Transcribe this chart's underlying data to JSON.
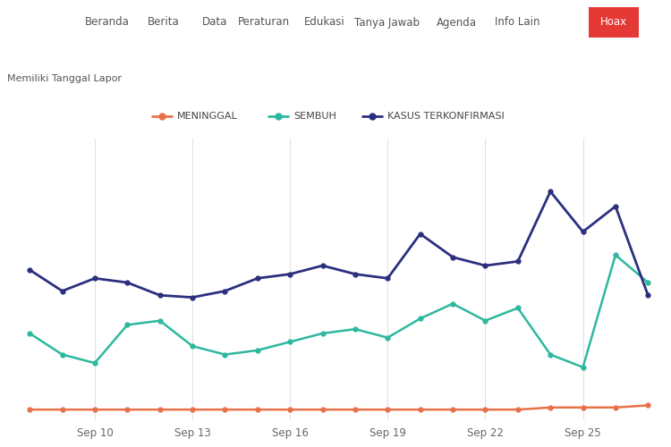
{
  "nav_items": [
    "Beranda",
    "Berita",
    "Data",
    "Peraturan",
    "Edukasi",
    "Tanya Jawab",
    "Agenda",
    "Info Lain",
    "Hoax"
  ],
  "subtitle": "Memiliki Tanggal Lapor",
  "legend": [
    "MENINGGAL",
    "SEMBUH",
    "KASUS TERKONFIRMASI"
  ],
  "legend_colors": [
    "#e8714a",
    "#2db89e",
    "#2b2f7e"
  ],
  "x_labels": [
    "Sep 10",
    "Sep 13",
    "Sep 16",
    "Sep 19",
    "Sep 22",
    "Sep 25"
  ],
  "x_tick_indices": [
    2,
    5,
    8,
    11,
    14,
    17
  ],
  "dates": [
    0,
    1,
    2,
    3,
    4,
    5,
    6,
    7,
    8,
    9,
    10,
    11,
    12,
    13,
    14,
    15,
    16,
    17,
    18,
    19
  ],
  "meninggal": [
    2,
    2,
    2,
    2,
    2,
    2,
    2,
    2,
    2,
    2,
    2,
    2,
    2,
    2,
    2,
    2,
    3,
    3,
    3,
    4
  ],
  "sembuh": [
    38,
    28,
    24,
    42,
    44,
    32,
    28,
    30,
    34,
    38,
    40,
    36,
    45,
    52,
    44,
    50,
    28,
    22,
    75,
    62
  ],
  "kasus": [
    68,
    58,
    64,
    62,
    56,
    55,
    58,
    64,
    66,
    70,
    66,
    64,
    85,
    74,
    70,
    72,
    105,
    86,
    98,
    56
  ],
  "bg_color": "#ffffff",
  "grid_color": "#e0e0e0",
  "hoax_bg": "#e53935",
  "hoax_text": "#ffffff",
  "nav_text": "#555555",
  "subtitle_text": "#555555",
  "ylim": [
    -3,
    130
  ]
}
